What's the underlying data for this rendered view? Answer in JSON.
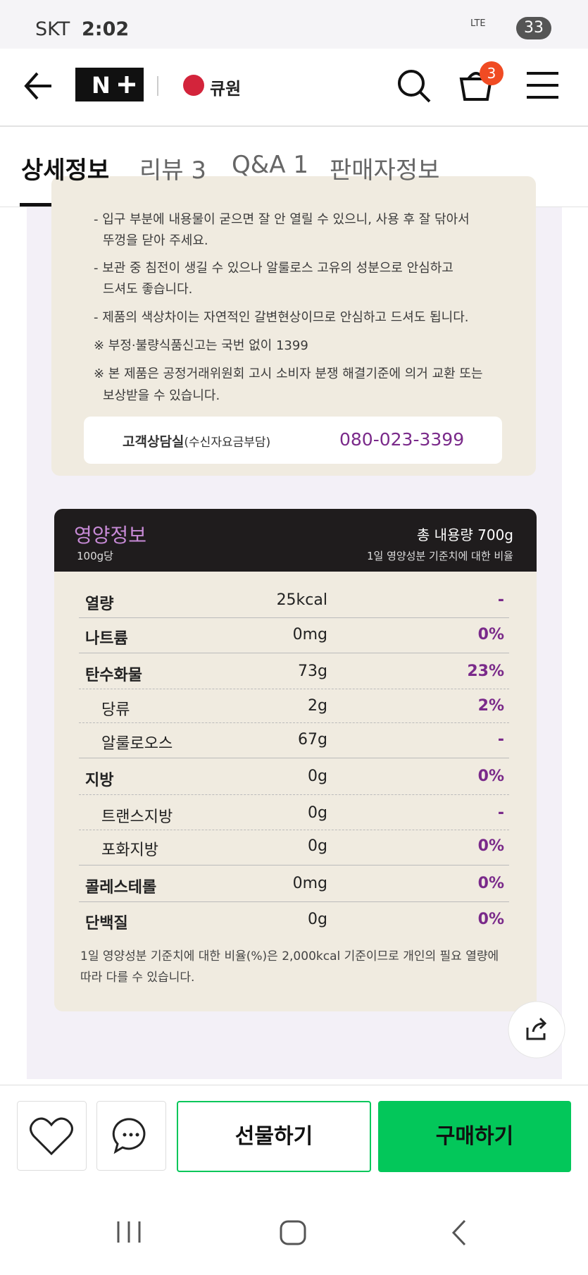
{
  "status_bar": {
    "carrier": "SKT",
    "time": "2:02",
    "network": "LTE",
    "battery": "33"
  },
  "header": {
    "brand": "큐원",
    "cart_count": "3"
  },
  "tabs": [
    "상세정보",
    "리뷰 3",
    "Q&A 1",
    "판매자정보"
  ],
  "notes": [
    [
      "- 입구 부분에 내용물이 굳으면 잘 안 열릴 수 있으니, 사용 후 잘 닦아서",
      "뚜껑을 닫아 주세요."
    ],
    [
      "- 보관 중 침전이 생길 수 있으나 알룰로스 고유의 성분으로 안심하고",
      "드셔도 좋습니다."
    ],
    [
      "- 제품의 색상차이는 자연적인 갈변현상이므로 안심하고 드셔도 됩니다."
    ],
    [
      "※ 부정·불량식품신고는 국번 없이 1399"
    ],
    [
      "※ 본 제품은 공정거래위원회 고시 소비자 분쟁 해결기준에 의거 교환 또는",
      "보상받을 수 있습니다."
    ]
  ],
  "customer_service": {
    "label": "고객상담실",
    "note": "(수신자요금부담)",
    "phone": "080-023-3399"
  },
  "nutrition": {
    "title": "영양정보",
    "basis": "100g당",
    "total": "총 내용량 700g",
    "dv_header": "1일 영양성분 기준치에 대한 비율",
    "rows": [
      [
        "열량",
        "25kcal",
        "-"
      ],
      [
        "나트륨",
        "0mg",
        "0%"
      ],
      [
        "탄수화물",
        "73g",
        "23%"
      ],
      [
        "당류",
        "2g",
        "2%"
      ],
      [
        "알룰로오스",
        "67g",
        "-"
      ],
      [
        "지방",
        "0g",
        "0%"
      ],
      [
        "트랜스지방",
        "0g",
        "-"
      ],
      [
        "포화지방",
        "0g",
        "0%"
      ],
      [
        "콜레스테롤",
        "0mg",
        "0%"
      ],
      [
        "단백질",
        "0g",
        "0%"
      ]
    ],
    "footnote": [
      "1일 영양성분 기준치에 대한 비율(%)은 2,000kcal 기준이므로 개인의 필요 열량에",
      "따라 다를 수 있습니다."
    ]
  },
  "bottom_bar": {
    "gift": "선물하기",
    "buy": "구매하기"
  }
}
